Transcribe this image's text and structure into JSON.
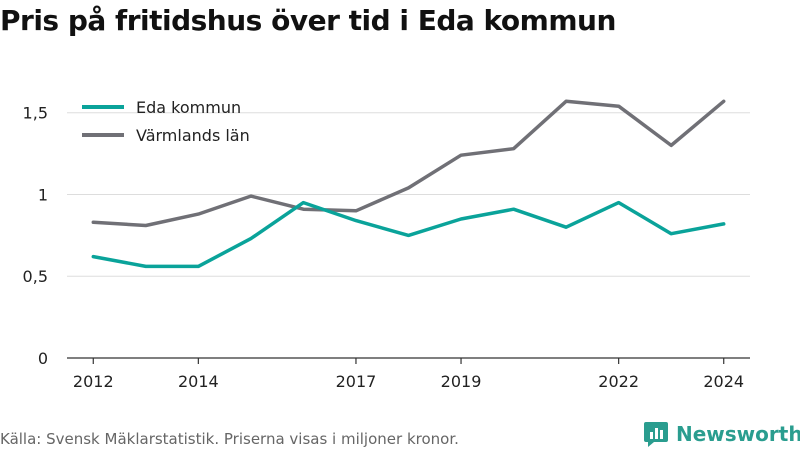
{
  "title": "Pris på fritidshus över tid i Eda kommun",
  "footer": {
    "source": "Källa: Svensk Mäklarstatistik. Priserna visas i miljoner kronor.",
    "brand": "Newsworthy",
    "brand_icon": "bar-chart-logo-icon"
  },
  "colors": {
    "eda": "#0aa39a",
    "varmland": "#707076",
    "grid": "#dddddd",
    "axis": "#333333"
  },
  "chart_data": {
    "type": "line",
    "title": "Pris på fritidshus över tid i Eda kommun",
    "xlabel": "",
    "ylabel": "",
    "x": [
      2012,
      2013,
      2014,
      2015,
      2016,
      2017,
      2018,
      2019,
      2020,
      2021,
      2022,
      2023,
      2024
    ],
    "x_ticks": [
      2012,
      2014,
      2017,
      2019,
      2022,
      2024
    ],
    "y_ticks": [
      0,
      0.5,
      1,
      1.5
    ],
    "y_tick_labels": [
      "0",
      "0,5",
      "1",
      "1,5"
    ],
    "ylim": [
      0,
      1.7
    ],
    "grid": true,
    "legend_position": "top-left",
    "series": [
      {
        "name": "Eda kommun",
        "color": "#0aa39a",
        "values": [
          0.62,
          0.56,
          0.56,
          0.73,
          0.95,
          0.84,
          0.75,
          0.85,
          0.91,
          0.8,
          0.95,
          0.76,
          0.82
        ]
      },
      {
        "name": "Värmlands län",
        "color": "#707076",
        "values": [
          0.83,
          0.81,
          0.88,
          0.99,
          0.91,
          0.9,
          1.04,
          1.24,
          1.28,
          1.57,
          1.54,
          1.3,
          1.57
        ]
      }
    ]
  }
}
